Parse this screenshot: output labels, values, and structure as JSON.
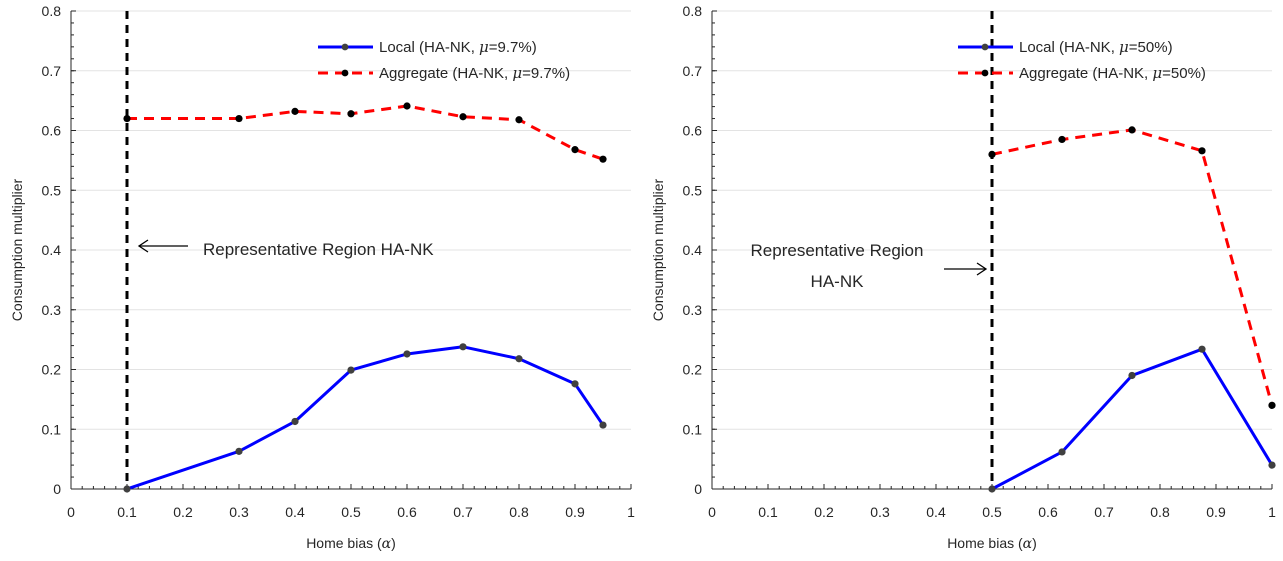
{
  "chart_data": [
    {
      "type": "line",
      "xlabel": "Home bias (α)",
      "ylabel": "Consumption multiplier",
      "xlim": [
        0,
        1
      ],
      "ylim": [
        0,
        0.8
      ],
      "xticks": [
        "0",
        "0.1",
        "0.2",
        "0.3",
        "0.4",
        "0.5",
        "0.6",
        "0.7",
        "0.8",
        "0.9",
        "1"
      ],
      "yticks": [
        "0",
        "0.1",
        "0.2",
        "0.3",
        "0.4",
        "0.5",
        "0.6",
        "0.7",
        "0.8"
      ],
      "grid": "horizontal",
      "legend_position": "top-right",
      "series": [
        {
          "name": "Local (HA-NK, μ=9.7%)",
          "style": "solid",
          "color": "#0000ff",
          "x": [
            0.1,
            0.3,
            0.4,
            0.5,
            0.6,
            0.7,
            0.8,
            0.9,
            0.95
          ],
          "y": [
            0.0,
            0.063,
            0.113,
            0.199,
            0.226,
            0.238,
            0.218,
            0.176,
            0.107
          ]
        },
        {
          "name": "Aggregate (HA-NK, μ=9.7%)",
          "style": "dashed",
          "color": "#ff0000",
          "x": [
            0.1,
            0.3,
            0.4,
            0.5,
            0.6,
            0.7,
            0.8,
            0.9,
            0.95
          ],
          "y": [
            0.62,
            0.62,
            0.632,
            0.628,
            0.641,
            0.623,
            0.618,
            0.568,
            0.552
          ]
        }
      ],
      "vline": {
        "x": 0.1,
        "style": "dashed",
        "color": "#000000"
      },
      "annotation": {
        "lines": [
          "Representative Region HA-NK"
        ],
        "arrow": "left"
      }
    },
    {
      "type": "line",
      "xlabel": "Home bias (α)",
      "ylabel": "Consumption multiplier",
      "xlim": [
        0,
        1
      ],
      "ylim": [
        0,
        0.8
      ],
      "xticks": [
        "0",
        "0.1",
        "0.2",
        "0.3",
        "0.4",
        "0.5",
        "0.6",
        "0.7",
        "0.8",
        "0.9",
        "1"
      ],
      "yticks": [
        "0",
        "0.1",
        "0.2",
        "0.3",
        "0.4",
        "0.5",
        "0.6",
        "0.7",
        "0.8"
      ],
      "grid": "horizontal",
      "legend_position": "top-right",
      "series": [
        {
          "name": "Local (HA-NK, μ=50%)",
          "style": "solid",
          "color": "#0000ff",
          "x": [
            0.5,
            0.625,
            0.75,
            0.875,
            1.0
          ],
          "y": [
            0.0,
            0.062,
            0.19,
            0.234,
            0.04
          ]
        },
        {
          "name": "Aggregate (HA-NK, μ=50%)",
          "style": "dashed",
          "color": "#ff0000",
          "x": [
            0.5,
            0.625,
            0.75,
            0.875,
            1.0
          ],
          "y": [
            0.56,
            0.585,
            0.601,
            0.566,
            0.14
          ]
        }
      ],
      "vline": {
        "x": 0.5,
        "style": "dashed",
        "color": "#000000"
      },
      "annotation": {
        "lines": [
          "Representative Region",
          "HA-NK"
        ],
        "arrow": "right"
      }
    }
  ]
}
